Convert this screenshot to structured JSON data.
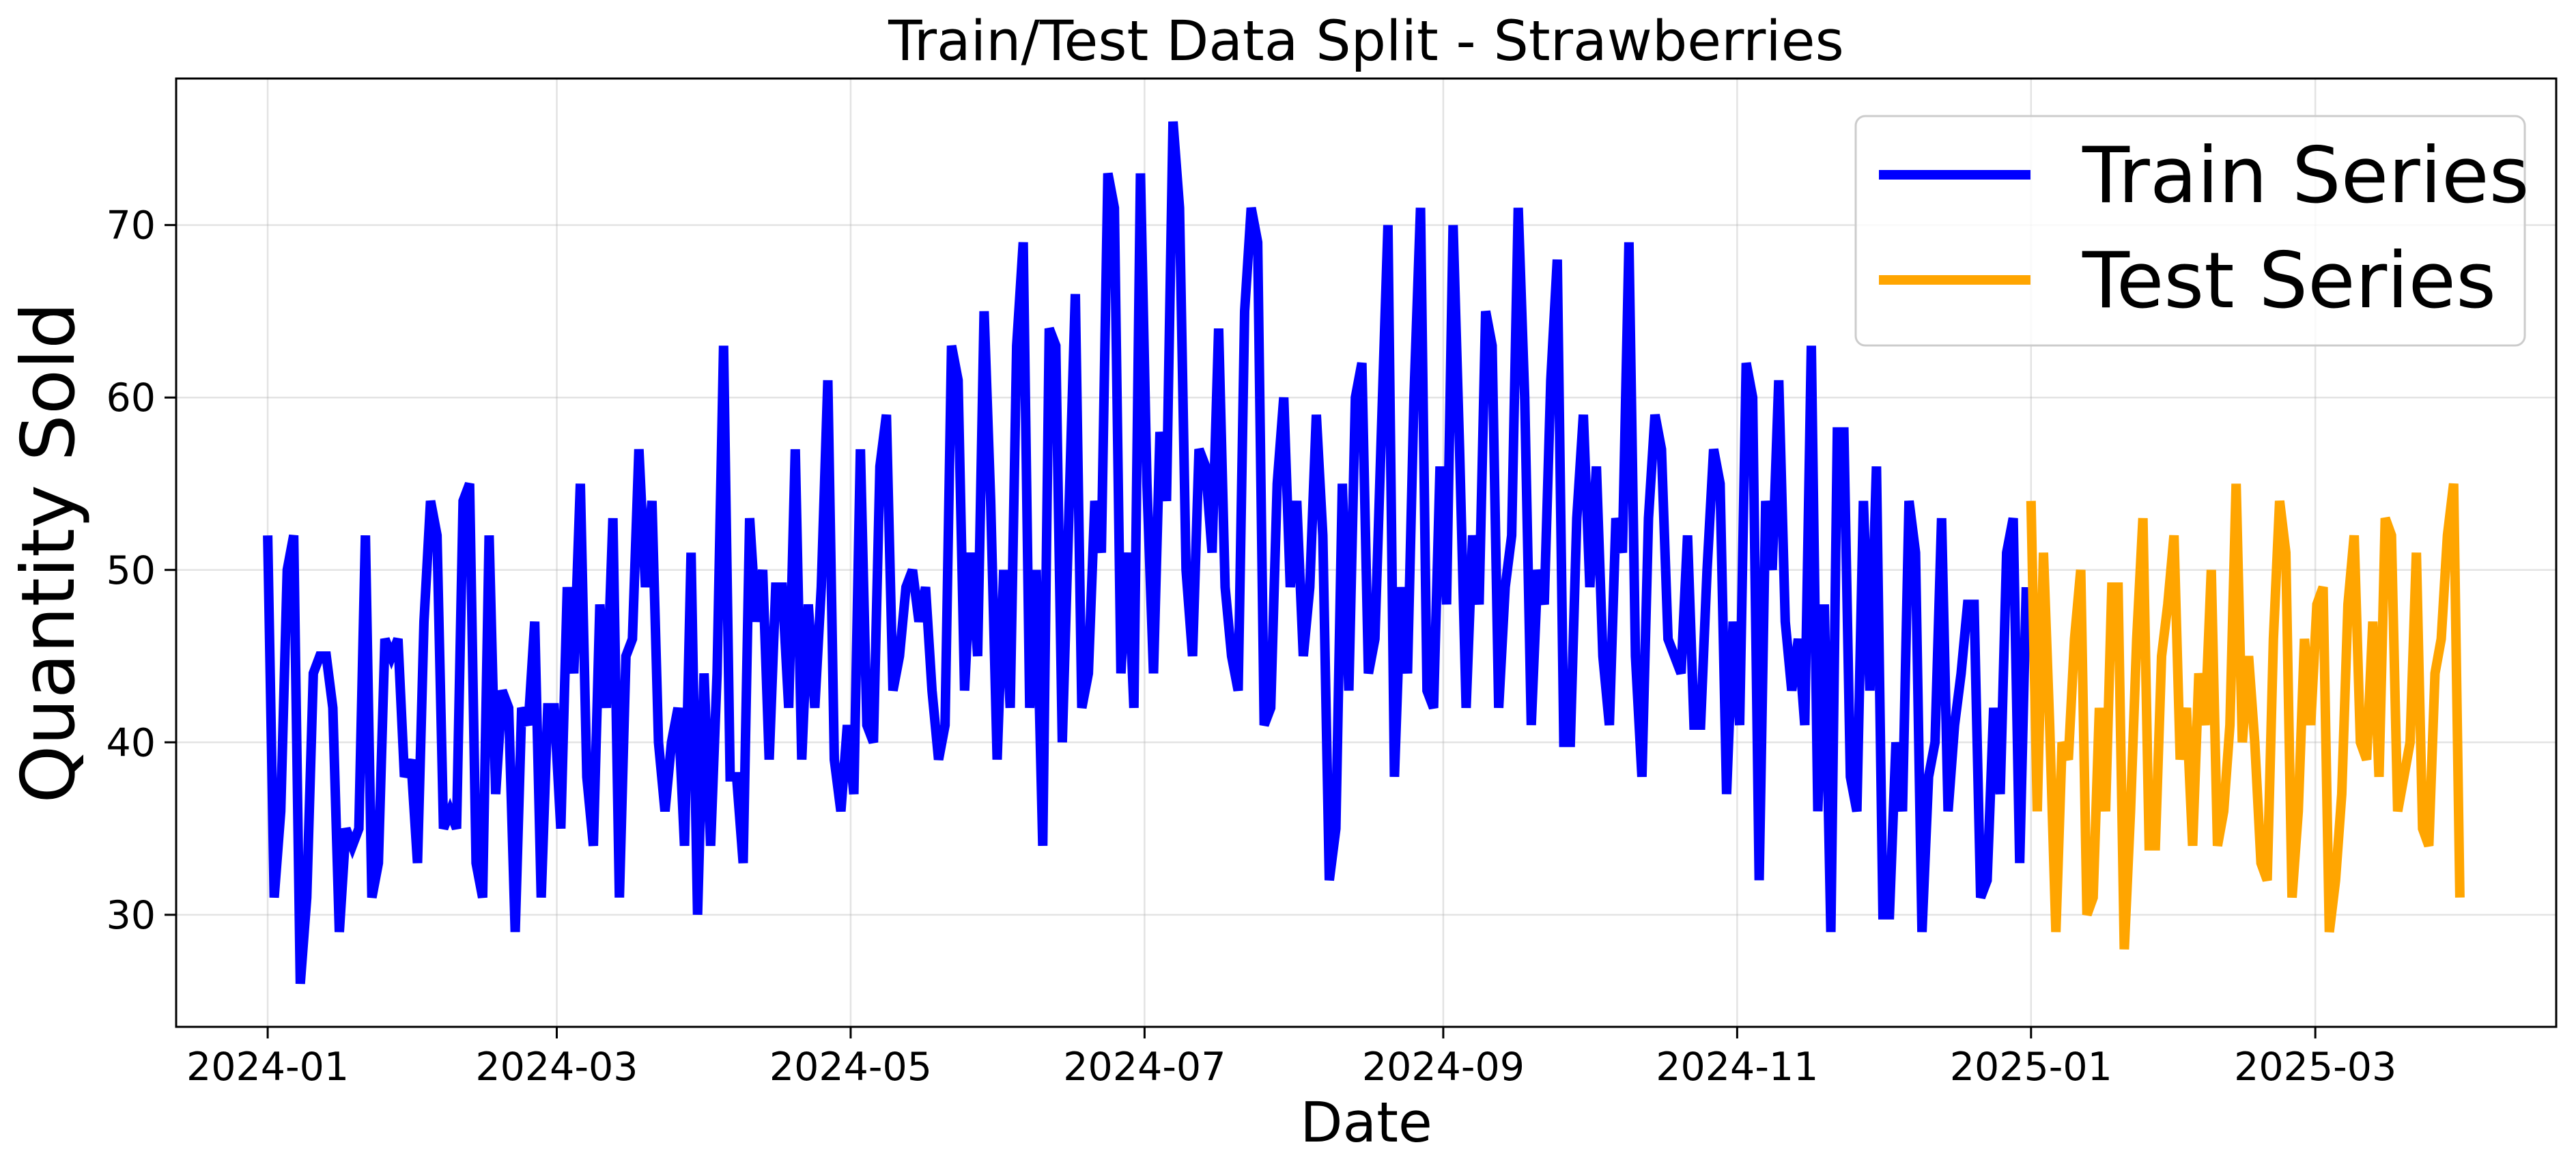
{
  "chart_data": {
    "type": "line",
    "title": "Train/Test Data Split - Strawberries",
    "xlabel": "Date",
    "ylabel": "Quantity Sold",
    "x_axis_type": "date",
    "xlim": [
      "2023-12-13",
      "2025-04-20"
    ],
    "ylim": [
      23.5,
      78.5
    ],
    "x_ticks": [
      "2024-01",
      "2024-03",
      "2024-05",
      "2024-07",
      "2024-09",
      "2024-11",
      "2025-01",
      "2025-03"
    ],
    "y_ticks": [
      30,
      40,
      50,
      60,
      70
    ],
    "grid": true,
    "legend_position": "top-right",
    "series": [
      {
        "name": "Train Series",
        "color": "#0000ff",
        "start": "2024-01-01",
        "end": "2024-12-31",
        "anchors": [
          52,
          31,
          36,
          50,
          52,
          26,
          31,
          44,
          45,
          45,
          42,
          29,
          35,
          34,
          35,
          52,
          31,
          33,
          46,
          45,
          46,
          38,
          39,
          33,
          47,
          54,
          52,
          35,
          36,
          35,
          54,
          55,
          33,
          31,
          52,
          37,
          43,
          42,
          29,
          42,
          41,
          47,
          31,
          42,
          42,
          35,
          49,
          44,
          55,
          38,
          34,
          48,
          42,
          53,
          31,
          45,
          46,
          57,
          49,
          54,
          40,
          36,
          40,
          42,
          34,
          51,
          30,
          44,
          34,
          44,
          63,
          38,
          38,
          33,
          53,
          47,
          50,
          39,
          49,
          49,
          42,
          57,
          39,
          48,
          42,
          49,
          61,
          39,
          36,
          41,
          37,
          57,
          41,
          40,
          56,
          59,
          43,
          45,
          49,
          50,
          47,
          49,
          43,
          39,
          41,
          63,
          61,
          43,
          51,
          45,
          65,
          54,
          39,
          50,
          42,
          63,
          69,
          42,
          50,
          34,
          64,
          63,
          40,
          53,
          66,
          42,
          44,
          54,
          51,
          73,
          71,
          44,
          51,
          42,
          73,
          55,
          44,
          58,
          54,
          76,
          71,
          50,
          45,
          57,
          56,
          51,
          64,
          49,
          45,
          43,
          65,
          71,
          69,
          41,
          42,
          55,
          60,
          49,
          54,
          45,
          49,
          59,
          52,
          32,
          35,
          55,
          43,
          60,
          62,
          44,
          46,
          58,
          70,
          38,
          49,
          44,
          60,
          71,
          43,
          42,
          56,
          48,
          70,
          57,
          42,
          52,
          48,
          65,
          63,
          42,
          49,
          52,
          71,
          60,
          41,
          50,
          48,
          61,
          68,
          40,
          40,
          53,
          59,
          49,
          56,
          45,
          41,
          53,
          51,
          69,
          45,
          38,
          53,
          59,
          57,
          46,
          45,
          44,
          52,
          41,
          41,
          50,
          57,
          55,
          37,
          47,
          41,
          62,
          60,
          32,
          54,
          50,
          61,
          47,
          43,
          46,
          41,
          63,
          36,
          48,
          29,
          58,
          58,
          38,
          36,
          54,
          43,
          56,
          30,
          30,
          40,
          36,
          54,
          51,
          29,
          38,
          40,
          53,
          36,
          41,
          44,
          48,
          48,
          31,
          32,
          42,
          37,
          51,
          53,
          33,
          49
        ]
      },
      {
        "name": "Test Series",
        "color": "#ffa500",
        "start": "2025-01-01",
        "end": "2025-03-31",
        "anchors": [
          54,
          36,
          51,
          41,
          29,
          40,
          39,
          46,
          50,
          30,
          31,
          42,
          36,
          49,
          49,
          28,
          36,
          46,
          53,
          34,
          34,
          45,
          48,
          52,
          39,
          42,
          34,
          44,
          41,
          50,
          34,
          36,
          41,
          55,
          40,
          45,
          40,
          33,
          32,
          46,
          54,
          51,
          31,
          36,
          46,
          41,
          48,
          49,
          29,
          32,
          37,
          48,
          52,
          40,
          39,
          47,
          38,
          53,
          52,
          36,
          38,
          40,
          51,
          35,
          34,
          44,
          46,
          52,
          55,
          31
        ]
      }
    ]
  }
}
